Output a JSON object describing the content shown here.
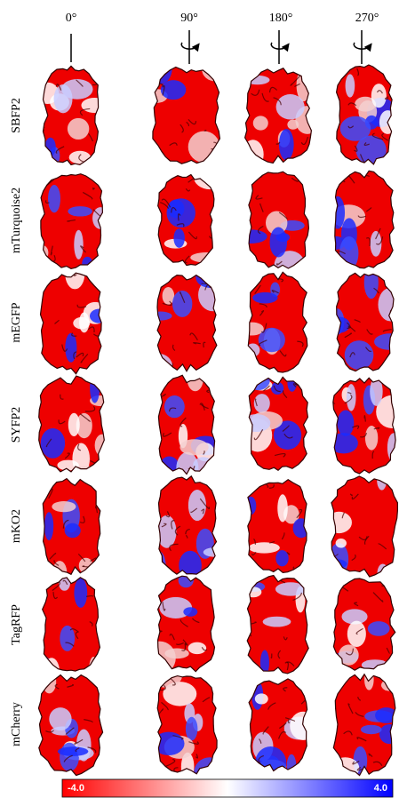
{
  "header": {
    "angles": [
      "0°",
      "90°",
      "180°",
      "270°"
    ]
  },
  "rows": [
    "SBFP2",
    "mTurquoise2",
    "mEGFP",
    "SYFP2",
    "mKO2",
    "TagRFP",
    "mCherry"
  ],
  "colorbar": {
    "min_label": "-4.0",
    "max_label": "4.0"
  }
}
